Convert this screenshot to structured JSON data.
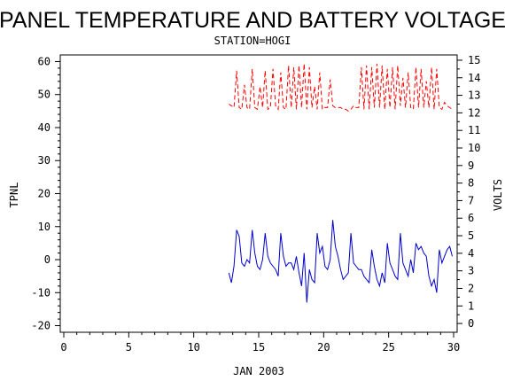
{
  "chart_data": {
    "type": "line",
    "title": "PANEL TEMPERATURE AND BATTERY VOLTAGE",
    "subtitle": "STATION=HOGI",
    "xlabel": "JAN 2003",
    "ylabel_left": "TPNL",
    "ylabel_right": "VOLTS",
    "xlim": [
      0,
      30
    ],
    "ylim_left": [
      -22,
      62
    ],
    "ylim_right": [
      -0.5,
      15.3
    ],
    "x_ticks": [
      0,
      5,
      10,
      15,
      20,
      25,
      30
    ],
    "y_left_ticks": [
      -20,
      -10,
      0,
      10,
      20,
      30,
      40,
      50,
      60
    ],
    "y_right_ticks": [
      0,
      1,
      2,
      3,
      4,
      5,
      6,
      7,
      8,
      9,
      10,
      11,
      12,
      13,
      14,
      15
    ],
    "grid": false,
    "series": [
      {
        "axis": "left",
        "color": "#0000cc",
        "style": "solid",
        "x": [
          12.7,
          12.9,
          13.1,
          13.3,
          13.5,
          13.7,
          13.9,
          14.1,
          14.3,
          14.5,
          14.7,
          14.9,
          15.1,
          15.3,
          15.5,
          15.7,
          15.9,
          16.1,
          16.3,
          16.5,
          16.7,
          16.9,
          17.1,
          17.3,
          17.5,
          17.7,
          17.9,
          18.1,
          18.3,
          18.5,
          18.7,
          18.9,
          19.1,
          19.3,
          19.5,
          19.7,
          19.9,
          20.1,
          20.3,
          20.5,
          20.7,
          20.9,
          21.1,
          21.3,
          21.5,
          21.7,
          21.9,
          22.1,
          22.3,
          22.5,
          22.7,
          22.9,
          23.1,
          23.3,
          23.5,
          23.7,
          23.9,
          24.1,
          24.3,
          24.5,
          24.7,
          24.9,
          25.1,
          25.3,
          25.5,
          25.7,
          25.9,
          26.1,
          26.3,
          26.5,
          26.7,
          26.9,
          27.1,
          27.3,
          27.5,
          27.7,
          27.9,
          28.1,
          28.3,
          28.5,
          28.7,
          28.9,
          29.1,
          29.3,
          29.5,
          29.7,
          29.9
        ],
        "values": [
          -4,
          -7,
          -2,
          9,
          7,
          -1,
          -2,
          0,
          -1,
          9,
          2,
          -2,
          -3,
          0,
          8,
          1,
          -1,
          -2,
          -3,
          -5,
          8,
          1,
          -2,
          -1,
          -1,
          -3,
          1,
          -4,
          -8,
          2,
          -13,
          -3,
          -6,
          -7,
          8,
          2,
          4,
          -2,
          -3,
          0,
          12,
          4,
          1,
          -3,
          -6,
          -5,
          -4,
          8,
          -1,
          -2,
          -3,
          -3,
          -5,
          -6,
          -7,
          3,
          -2,
          -6,
          -8,
          -4,
          -7,
          5,
          -1,
          -3,
          -5,
          -6,
          8,
          -1,
          -3,
          -5,
          0,
          -4,
          5,
          3,
          4,
          2,
          1,
          -5,
          -8,
          -6,
          -10,
          3,
          -1,
          1,
          3,
          4,
          1
        ],
        "note": "x in days of JAN 2003, values in degrees (left axis)"
      },
      {
        "axis": "right",
        "color": "#ff0000",
        "style": "dashed",
        "x": [
          12.7,
          12.9,
          13.1,
          13.3,
          13.5,
          13.7,
          13.9,
          14.1,
          14.3,
          14.5,
          14.7,
          14.9,
          15.1,
          15.3,
          15.5,
          15.7,
          15.9,
          16.1,
          16.3,
          16.5,
          16.7,
          16.9,
          17.1,
          17.3,
          17.5,
          17.7,
          17.9,
          18.1,
          18.3,
          18.5,
          18.7,
          18.9,
          19.1,
          19.3,
          19.5,
          19.7,
          19.9,
          20.1,
          20.3,
          20.5,
          20.7,
          20.9,
          21.1,
          21.3,
          21.5,
          21.7,
          21.9,
          22.1,
          22.3,
          22.5,
          22.7,
          22.9,
          23.1,
          23.3,
          23.5,
          23.7,
          23.9,
          24.1,
          24.3,
          24.5,
          24.7,
          24.9,
          25.1,
          25.3,
          25.5,
          25.7,
          25.9,
          26.1,
          26.3,
          26.5,
          26.7,
          26.9,
          27.1,
          27.3,
          27.5,
          27.7,
          27.9,
          28.1,
          28.3,
          28.5,
          28.7,
          28.9,
          29.1,
          29.3,
          29.5,
          29.7,
          29.9
        ],
        "values": [
          12.5,
          12.4,
          12.3,
          14.4,
          12.3,
          12.2,
          13.6,
          12.3,
          12.2,
          14.5,
          12.3,
          12.2,
          13.5,
          12.3,
          14.4,
          12.2,
          12.3,
          14.5,
          12.4,
          12.2,
          14.3,
          12.3,
          12.2,
          14.7,
          12.3,
          14.6,
          12.2,
          14.7,
          12.3,
          14.8,
          12.2,
          14.6,
          12.3,
          13.5,
          12.2,
          14.3,
          12.2,
          12.3,
          12.3,
          13.9,
          12.4,
          12.3,
          12.3,
          12.3,
          12.2,
          12.2,
          12.1,
          12.2,
          12.4,
          12.3,
          12.3,
          14.6,
          12.2,
          14.7,
          12.2,
          14.6,
          12.3,
          14.8,
          12.3,
          14.7,
          12.2,
          14.5,
          12.3,
          14.6,
          12.2,
          14.7,
          12.4,
          14.0,
          12.3,
          14.3,
          12.3,
          12.2,
          14.6,
          12.3,
          14.5,
          12.3,
          13.8,
          12.3,
          14.6,
          12.2,
          14.5,
          12.3,
          12.2,
          12.6,
          12.4,
          12.3,
          12.2
        ],
        "note": "x in days of JAN 2003, values in volts (right axis)"
      }
    ]
  }
}
